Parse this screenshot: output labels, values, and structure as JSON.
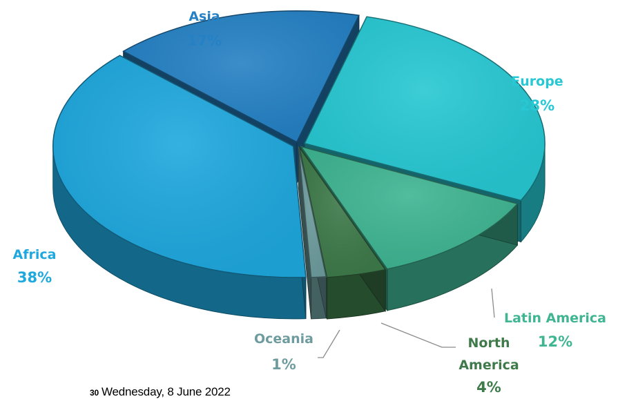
{
  "chart_data": {
    "type": "pie",
    "style": "3d-exploded",
    "slices": [
      {
        "label": "Europe",
        "value": 28,
        "display": "28%",
        "color": "#27C8D3"
      },
      {
        "label": "Latin America",
        "value": 12,
        "display": "12%",
        "color": "#3FB592"
      },
      {
        "label": "North America",
        "value": 4,
        "display": "4%",
        "color": "#3E7A4A"
      },
      {
        "label": "Oceania",
        "value": 1,
        "display": "1%",
        "color": "#6E9C9E"
      },
      {
        "label": "Africa",
        "value": 38,
        "display": "38%",
        "color": "#1FA8DE"
      },
      {
        "label": "Asia",
        "value": 17,
        "display": "17%",
        "color": "#2581C4"
      }
    ],
    "label_lines": [
      "Asia",
      "Europe",
      "Latin",
      "America",
      "North",
      "America",
      "Oceania",
      "Africa"
    ],
    "legend": "none"
  },
  "footer": {
    "slide_number": "30",
    "date": "Wednesday, 8 June 2022"
  }
}
